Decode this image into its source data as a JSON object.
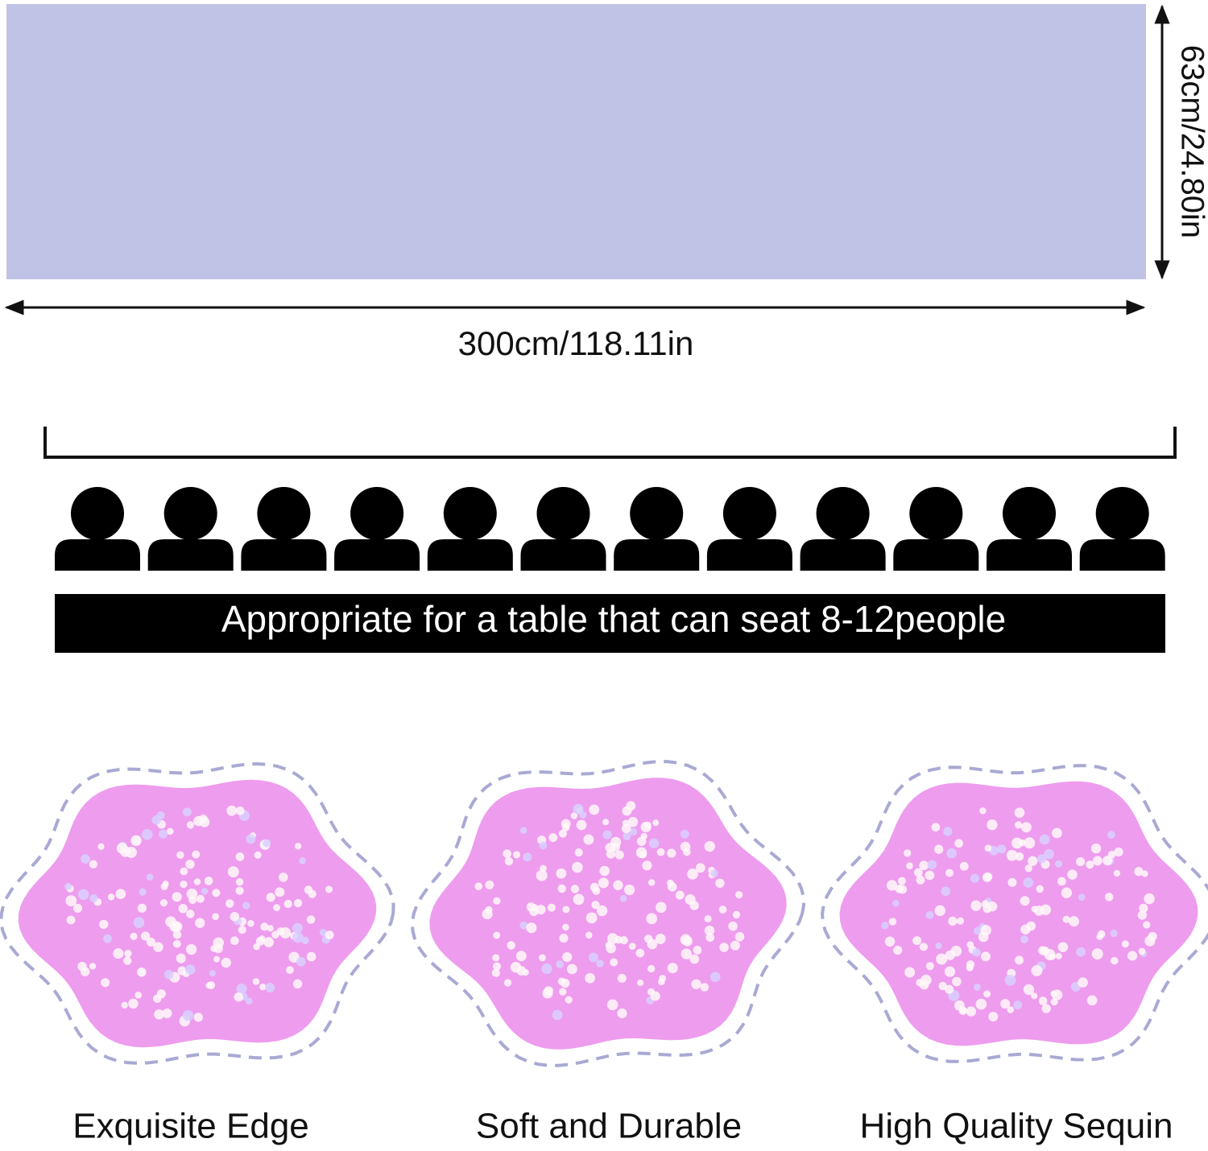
{
  "dimensions": {
    "height_label": "63cm/24.80in",
    "length_label": "300cm/118.11in"
  },
  "seating": {
    "banner": "Appropriate for a table that can seat 8-12people"
  },
  "features": [
    {
      "label": "Exquisite Edge"
    },
    {
      "label": "Soft and Durable"
    },
    {
      "label": "High Quality Sequin"
    }
  ]
}
